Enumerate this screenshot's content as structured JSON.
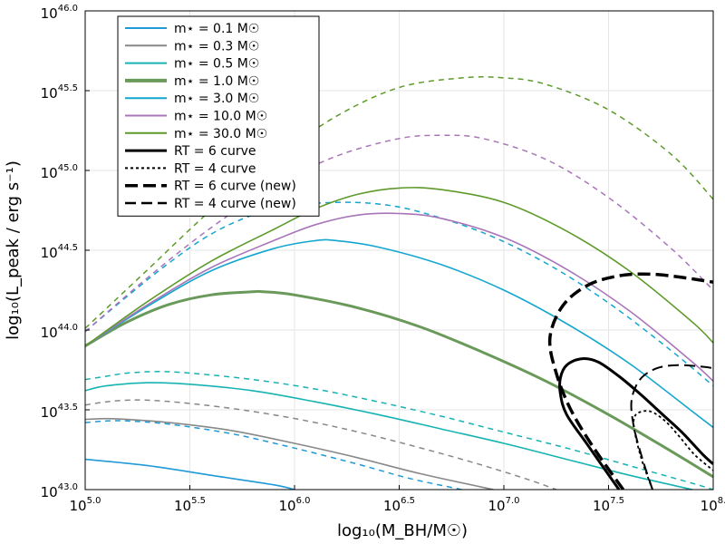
{
  "chart_data": {
    "type": "line",
    "xlabel": "log₁₀(M_BH/M☉)",
    "ylabel": "log₁₀(L_peak / erg s⁻¹)",
    "xlim": [
      5.0,
      8.0
    ],
    "ylim": [
      43.0,
      46.0
    ],
    "grid": true,
    "legend_position": "top-left",
    "x_ticks": [
      {
        "v": 5.0,
        "base": "10",
        "exp": "5.0"
      },
      {
        "v": 5.5,
        "base": "10",
        "exp": "5.5"
      },
      {
        "v": 6.0,
        "base": "10",
        "exp": "6.0"
      },
      {
        "v": 6.5,
        "base": "10",
        "exp": "6.5"
      },
      {
        "v": 7.0,
        "base": "10",
        "exp": "7.0"
      },
      {
        "v": 7.5,
        "base": "10",
        "exp": "7.5"
      },
      {
        "v": 8.0,
        "base": "10",
        "exp": "8."
      }
    ],
    "y_ticks": [
      {
        "v": 43.0,
        "base": "10",
        "exp": "43.0"
      },
      {
        "v": 43.5,
        "base": "10",
        "exp": "43.5"
      },
      {
        "v": 44.0,
        "base": "10",
        "exp": "44.0"
      },
      {
        "v": 44.5,
        "base": "10",
        "exp": "44.5"
      },
      {
        "v": 45.0,
        "base": "10",
        "exp": "45.0"
      },
      {
        "v": 45.5,
        "base": "10",
        "exp": "45.5"
      },
      {
        "v": 46.0,
        "base": "10",
        "exp": "46.0"
      }
    ],
    "legend": [
      {
        "label": "m⋆ = 0.1 M☉",
        "color": "#1f9ad6",
        "width": 2,
        "dash": ""
      },
      {
        "label": "m⋆ = 0.3 M☉",
        "color": "#888888",
        "width": 2,
        "dash": ""
      },
      {
        "label": "m⋆ = 0.5 M☉",
        "color": "#17b3b3",
        "width": 2,
        "dash": ""
      },
      {
        "label": "m⋆ = 1.0 M☉",
        "color": "#6a9a5a",
        "width": 4,
        "dash": ""
      },
      {
        "label": "m⋆ = 3.0 M☉",
        "color": "#13a6cf",
        "width": 2,
        "dash": ""
      },
      {
        "label": "m⋆ = 10.0 M☉",
        "color": "#a875b8",
        "width": 2,
        "dash": ""
      },
      {
        "label": "m⋆ = 30.0 M☉",
        "color": "#5e9a2a",
        "width": 2,
        "dash": ""
      },
      {
        "label": "RT = 6 curve",
        "color": "#000000",
        "width": 3,
        "dash": ""
      },
      {
        "label": "RT = 4 curve",
        "color": "#000000",
        "width": 2,
        "dash": "3,3"
      },
      {
        "label": "RT = 6 curve (new)",
        "color": "#000000",
        "width": 3.5,
        "dash": "14,6"
      },
      {
        "label": "RT = 4 curve (new)",
        "color": "#000000",
        "width": 2.5,
        "dash": "12,6"
      }
    ],
    "series": [
      {
        "name": "m⋆ = 0.1 M☉",
        "color": "#1f9ad6",
        "width": 1.6,
        "dash": "",
        "x": [
          5.0,
          5.3,
          5.6,
          5.9,
          6.0
        ],
        "y": [
          43.19,
          43.15,
          43.09,
          43.03,
          43.0
        ]
      },
      {
        "name": "m⋆ = 0.3 M☉",
        "color": "#888888",
        "width": 1.6,
        "dash": "",
        "x": [
          5.0,
          5.1,
          5.2,
          5.4,
          5.7,
          6.0,
          6.3,
          6.6,
          6.95
        ],
        "y": [
          43.44,
          43.445,
          43.44,
          43.42,
          43.37,
          43.29,
          43.2,
          43.1,
          43.0
        ]
      },
      {
        "name": "m⋆ = 0.3 M☉ (dashed)",
        "color": "#888888",
        "width": 1.5,
        "dash": "6,5",
        "x": [
          5.0,
          5.1,
          5.2,
          5.3,
          5.5,
          5.8,
          6.1,
          6.4,
          6.8,
          7.1,
          7.25
        ],
        "y": [
          43.53,
          43.55,
          43.56,
          43.56,
          43.54,
          43.49,
          43.42,
          43.33,
          43.19,
          43.07,
          43.0
        ]
      },
      {
        "name": "m⋆ = 0.5 M☉",
        "color": "#17b3b3",
        "width": 1.6,
        "dash": "",
        "x": [
          5.0,
          5.1,
          5.3,
          5.5,
          5.8,
          6.1,
          6.4,
          6.7,
          7.0,
          7.3,
          7.6,
          7.9,
          8.0
        ],
        "y": [
          43.62,
          43.65,
          43.67,
          43.66,
          43.62,
          43.55,
          43.47,
          43.38,
          43.29,
          43.19,
          43.09,
          43.0,
          42.97
        ]
      },
      {
        "name": "m⋆ = 0.5 M☉ (dashed)",
        "color": "#17b3b3",
        "width": 1.5,
        "dash": "6,5",
        "x": [
          5.0,
          5.1,
          5.2,
          5.35,
          5.5,
          5.8,
          6.1,
          6.4,
          6.7,
          7.0,
          7.3,
          7.6,
          7.9,
          8.0
        ],
        "y": [
          43.69,
          43.71,
          43.73,
          43.74,
          43.73,
          43.69,
          43.63,
          43.55,
          43.46,
          43.36,
          43.26,
          43.15,
          43.04,
          43.0
        ]
      },
      {
        "name": "m⋆ = 0.1 M☉ (dashed)",
        "color": "#1f9ad6",
        "width": 1.5,
        "dash": "6,5",
        "x": [
          5.0,
          5.1,
          5.2,
          5.4,
          5.7,
          6.0,
          6.3,
          6.55,
          6.8
        ],
        "y": [
          43.42,
          43.43,
          43.43,
          43.41,
          43.35,
          43.26,
          43.16,
          43.07,
          43.0
        ]
      },
      {
        "name": "m⋆ = 1.0 M☉",
        "color": "#6a9a5a",
        "width": 3,
        "dash": "",
        "x": [
          5.0,
          5.2,
          5.4,
          5.6,
          5.8,
          5.85,
          6.0,
          6.3,
          6.6,
          6.9,
          7.2,
          7.5,
          7.8,
          8.0
        ],
        "y": [
          43.9,
          44.05,
          44.16,
          44.22,
          44.24,
          44.24,
          44.22,
          44.14,
          44.02,
          43.86,
          43.68,
          43.47,
          43.24,
          43.08
        ]
      },
      {
        "name": "m⋆ = 3.0 M☉",
        "color": "#13a6cf",
        "width": 1.6,
        "dash": "",
        "x": [
          5.0,
          5.3,
          5.6,
          5.9,
          6.1,
          6.2,
          6.4,
          6.7,
          7.0,
          7.3,
          7.6,
          7.9,
          8.0
        ],
        "y": [
          43.9,
          44.15,
          44.37,
          44.51,
          44.56,
          44.56,
          44.52,
          44.41,
          44.25,
          44.04,
          43.79,
          43.49,
          43.39
        ]
      },
      {
        "name": "m⋆ = 3.0 M☉ (dashed)",
        "color": "#13a6cf",
        "width": 1.5,
        "dash": "6,5",
        "x": [
          5.0,
          5.2,
          5.4,
          5.6,
          5.8,
          6.0,
          6.2,
          6.4,
          6.6,
          6.9,
          7.2,
          7.5,
          7.8,
          8.0
        ],
        "y": [
          43.99,
          44.21,
          44.42,
          44.6,
          44.72,
          44.78,
          44.8,
          44.79,
          44.74,
          44.61,
          44.42,
          44.17,
          43.87,
          43.65
        ]
      },
      {
        "name": "m⋆ = 10.0 M☉",
        "color": "#a875b8",
        "width": 1.6,
        "dash": "",
        "x": [
          5.0,
          5.3,
          5.6,
          5.9,
          6.1,
          6.3,
          6.5,
          6.7,
          7.0,
          7.3,
          7.6,
          7.9,
          8.0
        ],
        "y": [
          43.9,
          44.16,
          44.39,
          44.56,
          44.66,
          44.72,
          44.73,
          44.7,
          44.58,
          44.38,
          44.12,
          43.8,
          43.68
        ]
      },
      {
        "name": "m⋆ = 10.0 M☉ (dashed)",
        "color": "#a875b8",
        "width": 1.5,
        "dash": "6,5",
        "x": [
          5.0,
          5.3,
          5.6,
          5.9,
          6.2,
          6.5,
          6.7,
          6.9,
          7.2,
          7.5,
          7.8,
          8.0
        ],
        "y": [
          43.99,
          44.33,
          44.64,
          44.9,
          45.09,
          45.2,
          45.22,
          45.2,
          45.07,
          44.83,
          44.51,
          44.25
        ]
      },
      {
        "name": "m⋆ = 30.0 M☉",
        "color": "#5e9a2a",
        "width": 1.6,
        "dash": "",
        "x": [
          5.0,
          5.3,
          5.6,
          5.9,
          6.1,
          6.3,
          6.5,
          6.7,
          7.0,
          7.3,
          7.6,
          7.9,
          8.0
        ],
        "y": [
          43.9,
          44.18,
          44.43,
          44.63,
          44.76,
          44.85,
          44.89,
          44.88,
          44.8,
          44.62,
          44.37,
          44.05,
          43.92
        ]
      },
      {
        "name": "m⋆ = 30.0 M☉ (dashed)",
        "color": "#5e9a2a",
        "width": 1.5,
        "dash": "6,5",
        "x": [
          5.0,
          5.3,
          5.6,
          5.9,
          6.2,
          6.5,
          6.8,
          7.0,
          7.2,
          7.5,
          7.8,
          8.0
        ],
        "y": [
          44.01,
          44.38,
          44.75,
          45.07,
          45.34,
          45.52,
          45.58,
          45.58,
          45.54,
          45.38,
          45.1,
          44.82
        ]
      },
      {
        "name": "RT = 6 curve",
        "color": "#000000",
        "width": 3,
        "dash": "",
        "x": [
          7.55,
          7.4,
          7.3,
          7.27,
          7.27,
          7.3,
          7.37,
          7.45,
          7.55,
          7.65,
          7.75,
          7.85,
          7.95,
          8.0
        ],
        "y": [
          43.0,
          43.28,
          43.47,
          43.6,
          43.7,
          43.78,
          43.82,
          43.8,
          43.71,
          43.6,
          43.48,
          43.36,
          43.22,
          43.16
        ]
      },
      {
        "name": "RT = 4 curve",
        "color": "#000000",
        "width": 1.8,
        "dash": "3,3",
        "x": [
          7.71,
          7.66,
          7.63,
          7.62,
          7.64,
          7.7,
          7.77,
          7.84,
          7.91,
          8.0
        ],
        "y": [
          43.0,
          43.18,
          43.33,
          43.43,
          43.48,
          43.49,
          43.43,
          43.33,
          43.22,
          43.12
        ]
      },
      {
        "name": "RT = 6 curve (new)",
        "color": "#000000",
        "width": 3.5,
        "dash": "14,6",
        "x": [
          7.57,
          7.43,
          7.32,
          7.25,
          7.22,
          7.28,
          7.4,
          7.55,
          7.7,
          7.85,
          8.0
        ],
        "y": [
          43.0,
          43.26,
          43.5,
          43.73,
          43.95,
          44.15,
          44.28,
          44.34,
          44.35,
          44.33,
          44.3
        ]
      },
      {
        "name": "RT = 4 curve (new)",
        "color": "#000000",
        "width": 2,
        "dash": "12,6",
        "x": [
          7.71,
          7.66,
          7.62,
          7.61,
          7.65,
          7.73,
          7.83,
          7.95,
          8.0
        ],
        "y": [
          43.0,
          43.2,
          43.4,
          43.56,
          43.69,
          43.76,
          43.78,
          43.77,
          43.76
        ]
      }
    ]
  }
}
